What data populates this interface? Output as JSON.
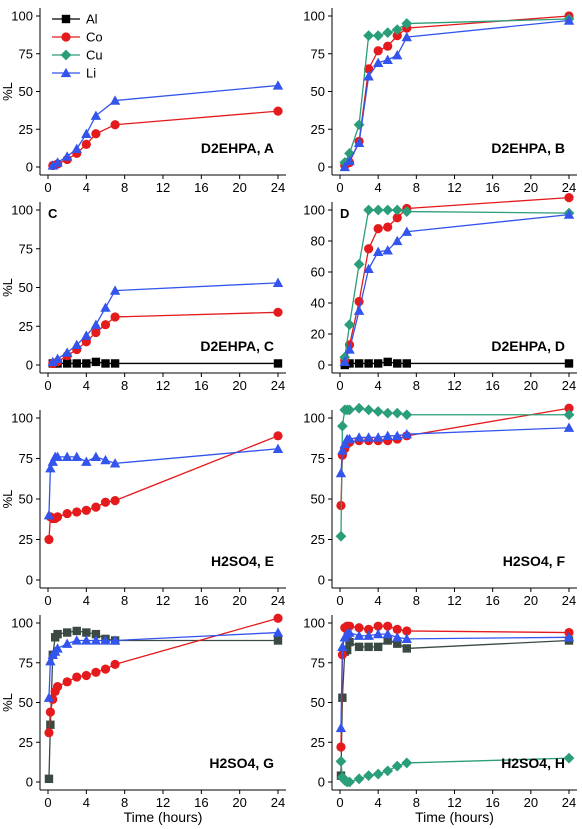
{
  "figure": {
    "xlabel": "Time (hours)",
    "ylabel": "%L",
    "legend": [
      "Al",
      "Co",
      "Cu",
      "Li"
    ]
  },
  "colors": {
    "Al": "#000000",
    "Co": "#e41a1c",
    "Cu": "#2a9d7a",
    "Li": "#3355ee",
    "Al_dark": "#3a4a42"
  },
  "chart_data": [
    {
      "type": "line",
      "title": "D2EHPA, A",
      "corner": "",
      "xlim": [
        0,
        24
      ],
      "ylim": [
        0,
        100
      ],
      "xticks": [
        0,
        4,
        8,
        12,
        16,
        20,
        24
      ],
      "yticks": [
        0,
        25,
        50,
        75,
        100
      ],
      "legend_position": "top-left",
      "series": [
        {
          "name": "Co",
          "x": [
            0.5,
            1,
            2,
            3,
            4,
            5,
            7,
            24
          ],
          "y": [
            1,
            2,
            5,
            9,
            15,
            22,
            28,
            37
          ]
        },
        {
          "name": "Li",
          "x": [
            0.5,
            1,
            2,
            3,
            4,
            5,
            7,
            24
          ],
          "y": [
            1,
            3,
            7,
            12,
            22,
            34,
            44,
            54
          ]
        }
      ]
    },
    {
      "type": "line",
      "title": "D2EHPA, B",
      "corner": "",
      "xlim": [
        0,
        24
      ],
      "ylim": [
        0,
        100
      ],
      "xticks": [
        0,
        4,
        8,
        12,
        16,
        20,
        24
      ],
      "yticks": [
        0,
        25,
        50,
        75,
        100
      ],
      "series": [
        {
          "name": "Co",
          "x": [
            0.5,
            1,
            2,
            3,
            4,
            5,
            6,
            7,
            24
          ],
          "y": [
            1,
            3,
            17,
            65,
            77,
            80,
            87,
            92,
            100
          ]
        },
        {
          "name": "Cu",
          "x": [
            0.5,
            1,
            2,
            3,
            4,
            5,
            6,
            7,
            24
          ],
          "y": [
            3,
            9,
            28,
            87,
            87,
            89,
            91,
            95,
            98
          ]
        },
        {
          "name": "Li",
          "x": [
            0.5,
            1,
            2,
            3,
            4,
            5,
            6,
            7,
            24
          ],
          "y": [
            0,
            4,
            16,
            60,
            69,
            71,
            74,
            86,
            97
          ]
        }
      ]
    },
    {
      "type": "line",
      "title": "D2EHPA, C",
      "corner": "C",
      "xlim": [
        0,
        24
      ],
      "ylim": [
        0,
        100
      ],
      "xticks": [
        0,
        4,
        8,
        12,
        16,
        20,
        24
      ],
      "yticks": [
        0,
        25,
        50,
        75,
        100
      ],
      "series": [
        {
          "name": "Al",
          "x": [
            0.5,
            1,
            2,
            3,
            4,
            5,
            6,
            7,
            24
          ],
          "y": [
            1,
            1,
            1,
            1,
            1,
            2,
            1,
            1,
            1
          ]
        },
        {
          "name": "Co",
          "x": [
            0.5,
            1,
            2,
            3,
            4,
            5,
            6,
            7,
            24
          ],
          "y": [
            1,
            2,
            6,
            10,
            15,
            21,
            26,
            31,
            34
          ]
        },
        {
          "name": "Li",
          "x": [
            0.5,
            1,
            2,
            3,
            4,
            5,
            6,
            7,
            24
          ],
          "y": [
            2,
            4,
            8,
            13,
            19,
            26,
            37,
            48,
            53
          ]
        }
      ]
    },
    {
      "type": "line",
      "title": "D2EHPA, D",
      "corner": "D",
      "xlim": [
        0,
        24
      ],
      "ylim": [
        0,
        100
      ],
      "xticks": [
        0,
        4,
        8,
        12,
        16,
        20,
        24
      ],
      "yticks": [
        0,
        20,
        40,
        60,
        80,
        100
      ],
      "series": [
        {
          "name": "Al",
          "x": [
            0.5,
            1,
            2,
            3,
            4,
            5,
            6,
            7,
            24
          ],
          "y": [
            0,
            1,
            1,
            1,
            1,
            2,
            1,
            1,
            1
          ]
        },
        {
          "name": "Co",
          "x": [
            0.5,
            1,
            2,
            3,
            4,
            5,
            6,
            7,
            24
          ],
          "y": [
            3,
            13,
            41,
            75,
            88,
            89,
            95,
            101,
            108
          ]
        },
        {
          "name": "Cu",
          "x": [
            0.5,
            1,
            2,
            3,
            4,
            5,
            6,
            7,
            24
          ],
          "y": [
            5,
            26,
            65,
            100,
            100,
            100,
            100,
            99,
            98
          ]
        },
        {
          "name": "Li",
          "x": [
            0.5,
            1,
            2,
            3,
            4,
            5,
            6,
            7,
            24
          ],
          "y": [
            2,
            10,
            35,
            62,
            73,
            74,
            80,
            86,
            97
          ]
        }
      ]
    },
    {
      "type": "line",
      "title": "H2SO4, E",
      "corner": "",
      "xlim": [
        0,
        24
      ],
      "ylim": [
        0,
        100
      ],
      "xticks": [
        0,
        4,
        8,
        12,
        16,
        20,
        24
      ],
      "yticks": [
        0,
        25,
        50,
        75,
        100
      ],
      "series": [
        {
          "name": "Co",
          "x": [
            0.1,
            0.25,
            0.5,
            0.75,
            1,
            2,
            3,
            4,
            5,
            6,
            7,
            24
          ],
          "y": [
            25,
            39,
            38,
            38,
            39,
            41,
            42,
            43,
            45,
            48,
            49,
            89
          ]
        },
        {
          "name": "Li",
          "x": [
            0.1,
            0.25,
            0.5,
            0.75,
            1,
            2,
            3,
            4,
            5,
            6,
            7,
            24
          ],
          "y": [
            40,
            69,
            73,
            76,
            76,
            76,
            76,
            73,
            76,
            74,
            72,
            81
          ]
        }
      ]
    },
    {
      "type": "line",
      "title": "H2SO4, F",
      "corner": "",
      "xlim": [
        0,
        24
      ],
      "ylim": [
        0,
        100
      ],
      "xticks": [
        0,
        4,
        8,
        12,
        16,
        20,
        24
      ],
      "yticks": [
        0,
        25,
        50,
        75,
        100
      ],
      "series": [
        {
          "name": "Co",
          "x": [
            0.1,
            0.25,
            0.5,
            0.75,
            1,
            2,
            3,
            4,
            5,
            6,
            7,
            24
          ],
          "y": [
            46,
            77,
            81,
            84,
            85,
            86,
            86,
            86,
            86,
            87,
            89,
            106
          ]
        },
        {
          "name": "Cu",
          "x": [
            0.1,
            0.25,
            0.5,
            0.75,
            1,
            2,
            3,
            4,
            5,
            6,
            7,
            24
          ],
          "y": [
            27,
            95,
            105,
            105,
            105,
            106,
            105,
            104,
            103,
            103,
            102,
            102
          ]
        },
        {
          "name": "Li",
          "x": [
            0.1,
            0.25,
            0.5,
            0.75,
            1,
            2,
            3,
            4,
            5,
            6,
            7,
            24
          ],
          "y": [
            66,
            80,
            84,
            87,
            87,
            88,
            88,
            88,
            89,
            89,
            90,
            94
          ]
        }
      ]
    },
    {
      "type": "line",
      "title": "H2SO4, G",
      "corner": "",
      "xlim": [
        0,
        24
      ],
      "ylim": [
        0,
        100
      ],
      "xticks": [
        0,
        4,
        8,
        12,
        16,
        20,
        24
      ],
      "yticks": [
        0,
        25,
        50,
        75,
        100
      ],
      "series": [
        {
          "name": "Al",
          "x": [
            0.1,
            0.25,
            0.5,
            0.75,
            1,
            2,
            3,
            4,
            5,
            6,
            7,
            24
          ],
          "y": [
            2,
            36,
            80,
            91,
            93,
            94,
            95,
            94,
            93,
            90,
            89,
            89
          ]
        },
        {
          "name": "Co",
          "x": [
            0.1,
            0.25,
            0.5,
            0.75,
            1,
            2,
            3,
            4,
            5,
            6,
            7,
            24
          ],
          "y": [
            31,
            44,
            52,
            57,
            60,
            63,
            66,
            67,
            69,
            71,
            74,
            103
          ]
        },
        {
          "name": "Li",
          "x": [
            0.1,
            0.25,
            0.5,
            0.75,
            1,
            2,
            3,
            4,
            5,
            6,
            7,
            24
          ],
          "y": [
            53,
            76,
            80,
            82,
            84,
            87,
            89,
            89,
            89,
            89,
            89,
            94
          ]
        }
      ]
    },
    {
      "type": "line",
      "title": "H2SO4, H",
      "corner": "",
      "xlim": [
        0,
        24
      ],
      "ylim": [
        0,
        100
      ],
      "xticks": [
        0,
        4,
        8,
        12,
        16,
        20,
        24
      ],
      "yticks": [
        0,
        25,
        50,
        75,
        100
      ],
      "series": [
        {
          "name": "Al",
          "x": [
            0.1,
            0.25,
            0.5,
            0.75,
            1,
            2,
            3,
            4,
            5,
            6,
            7,
            24
          ],
          "y": [
            4,
            53,
            82,
            83,
            88,
            85,
            85,
            85,
            89,
            87,
            84,
            89
          ]
        },
        {
          "name": "Co",
          "x": [
            0.1,
            0.25,
            0.5,
            0.75,
            1,
            2,
            3,
            4,
            5,
            6,
            7,
            24
          ],
          "y": [
            22,
            80,
            97,
            98,
            98,
            97,
            96,
            98,
            98,
            96,
            95,
            94
          ]
        },
        {
          "name": "Cu",
          "x": [
            0.1,
            0.25,
            0.5,
            0.75,
            1,
            2,
            3,
            4,
            5,
            6,
            7,
            24
          ],
          "y": [
            13,
            3,
            1,
            0,
            0,
            2,
            4,
            5,
            7,
            10,
            12,
            15
          ]
        },
        {
          "name": "Li",
          "x": [
            0.1,
            0.25,
            0.5,
            0.75,
            1,
            2,
            3,
            4,
            5,
            6,
            7,
            24
          ],
          "y": [
            34,
            85,
            91,
            93,
            94,
            92,
            92,
            93,
            93,
            91,
            90,
            91
          ]
        }
      ]
    }
  ]
}
